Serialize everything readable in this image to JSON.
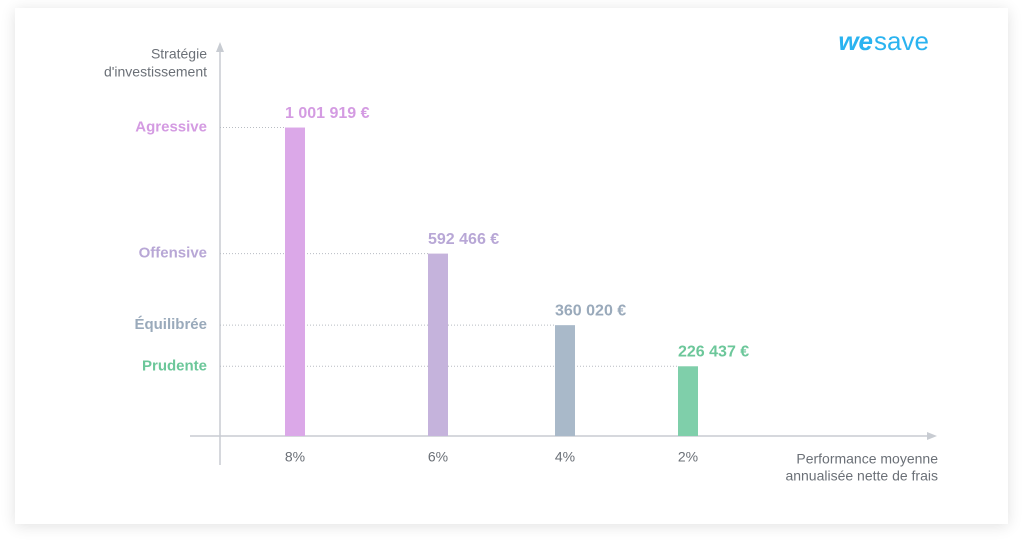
{
  "logo": {
    "mark": "we",
    "text": "save"
  },
  "chart_data": {
    "type": "bar",
    "y_title": [
      "Stratégie",
      "d'investissement"
    ],
    "x_title": [
      "Performance moyenne",
      "annualisée nette de frais"
    ],
    "categories": [
      "8%",
      "6%",
      "4%",
      "2%"
    ],
    "values": [
      1001919,
      592466,
      360020,
      226437
    ],
    "value_labels": [
      "1 001 919 €",
      "592 466 €",
      "360 020 €",
      "226 437 €"
    ],
    "colors": [
      "#dba8e8",
      "#c5b3dc",
      "#a9b9c9",
      "#7fcfaa"
    ],
    "label_colors": [
      "#d49be2",
      "#b8a7d6",
      "#9aaabb",
      "#6cc79a"
    ],
    "ylim": [
      0,
      1270000
    ],
    "yticks": [
      {
        "value": 1001919,
        "label": "Agressive"
      },
      {
        "value": 592466,
        "label": "Offensive"
      },
      {
        "value": 360020,
        "label": "Équilibrée"
      },
      {
        "value": 226437,
        "label": "Prudente"
      }
    ],
    "grid": true
  }
}
